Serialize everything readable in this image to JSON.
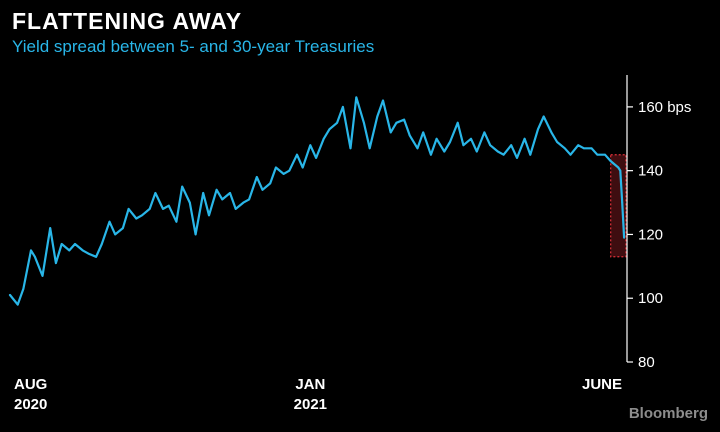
{
  "header": {
    "title": "FLATTENING AWAY",
    "subtitle": "Yield spread between 5- and 30-year Treasuries"
  },
  "footer": {
    "source": "Bloomberg"
  },
  "colors": {
    "line": "#29b6e8",
    "highlight": "#e0303a",
    "axis": "#ffffff",
    "background": "#000000"
  },
  "chart_data": {
    "type": "line",
    "title": "FLATTENING AWAY",
    "subtitle": "Yield spread between 5- and 30-year Treasuries",
    "xlabel": "",
    "ylabel": "",
    "y_unit": "bps",
    "ylim": [
      80,
      170
    ],
    "y_ticks": [
      80,
      100,
      120,
      140,
      160
    ],
    "y_tick_labels": [
      "80",
      "100",
      "120",
      "140",
      "160 bps"
    ],
    "xlim": [
      "2020-07-31",
      "2021-06-18"
    ],
    "x_tick_labels": [
      {
        "date": "2020-08-03",
        "line1": "AUG",
        "line2": "2020"
      },
      {
        "date": "2021-01-04",
        "line1": "JAN",
        "line2": "2021"
      },
      {
        "date": "2021-06-01",
        "line1": "JUNE",
        "line2": ""
      }
    ],
    "grid": false,
    "legend": "none",
    "axis_side": "right",
    "highlight_window": {
      "start": "2021-06-10",
      "end": "2021-06-18",
      "low": 113,
      "high": 145
    },
    "series": [
      {
        "x": [
          "2020-07-31",
          "2020-08-04",
          "2020-08-07",
          "2020-08-11",
          "2020-08-13",
          "2020-08-17",
          "2020-08-21",
          "2020-08-24",
          "2020-08-27",
          "2020-08-31",
          "2020-09-03",
          "2020-09-07",
          "2020-09-10",
          "2020-09-14",
          "2020-09-17",
          "2020-09-21",
          "2020-09-24",
          "2020-09-28",
          "2020-10-01",
          "2020-10-05",
          "2020-10-08",
          "2020-10-12",
          "2020-10-15",
          "2020-10-19",
          "2020-10-22",
          "2020-10-26",
          "2020-10-29",
          "2020-11-02",
          "2020-11-05",
          "2020-11-09",
          "2020-11-12",
          "2020-11-16",
          "2020-11-19",
          "2020-11-23",
          "2020-11-26",
          "2020-11-30",
          "2020-12-03",
          "2020-12-07",
          "2020-12-10",
          "2020-12-14",
          "2020-12-17",
          "2020-12-21",
          "2020-12-24",
          "2020-12-28",
          "2020-12-31",
          "2021-01-04",
          "2021-01-07",
          "2021-01-11",
          "2021-01-14",
          "2021-01-18",
          "2021-01-21",
          "2021-01-25",
          "2021-01-28",
          "2021-02-01",
          "2021-02-04",
          "2021-02-08",
          "2021-02-11",
          "2021-02-15",
          "2021-02-18",
          "2021-02-22",
          "2021-02-25",
          "2021-03-01",
          "2021-03-04",
          "2021-03-08",
          "2021-03-11",
          "2021-03-15",
          "2021-03-18",
          "2021-03-22",
          "2021-03-25",
          "2021-03-29",
          "2021-04-01",
          "2021-04-05",
          "2021-04-08",
          "2021-04-12",
          "2021-04-15",
          "2021-04-19",
          "2021-04-22",
          "2021-04-26",
          "2021-04-29",
          "2021-05-03",
          "2021-05-06",
          "2021-05-10",
          "2021-05-13",
          "2021-05-17",
          "2021-05-20",
          "2021-05-24",
          "2021-05-27",
          "2021-05-31",
          "2021-06-03",
          "2021-06-07",
          "2021-06-10",
          "2021-06-14",
          "2021-06-15",
          "2021-06-16",
          "2021-06-17"
        ],
        "values": [
          101,
          98,
          103,
          115,
          113,
          107,
          122,
          111,
          117,
          115,
          117,
          115,
          114,
          113,
          117,
          124,
          120,
          122,
          128,
          125,
          126,
          128,
          133,
          128,
          129,
          124,
          135,
          130,
          120,
          133,
          126,
          134,
          131,
          133,
          128,
          130,
          131,
          138,
          134,
          136,
          141,
          139,
          140,
          145,
          141,
          148,
          144,
          150,
          153,
          155,
          160,
          147,
          163,
          155,
          147,
          157,
          162,
          152,
          155,
          156,
          151,
          147,
          152,
          145,
          150,
          146,
          149,
          155,
          148,
          150,
          146,
          152,
          148,
          146,
          145,
          148,
          144,
          150,
          145,
          153,
          157,
          152,
          149,
          147,
          145,
          148,
          147,
          147,
          145,
          145,
          143,
          141,
          140,
          130,
          119
        ]
      }
    ]
  }
}
